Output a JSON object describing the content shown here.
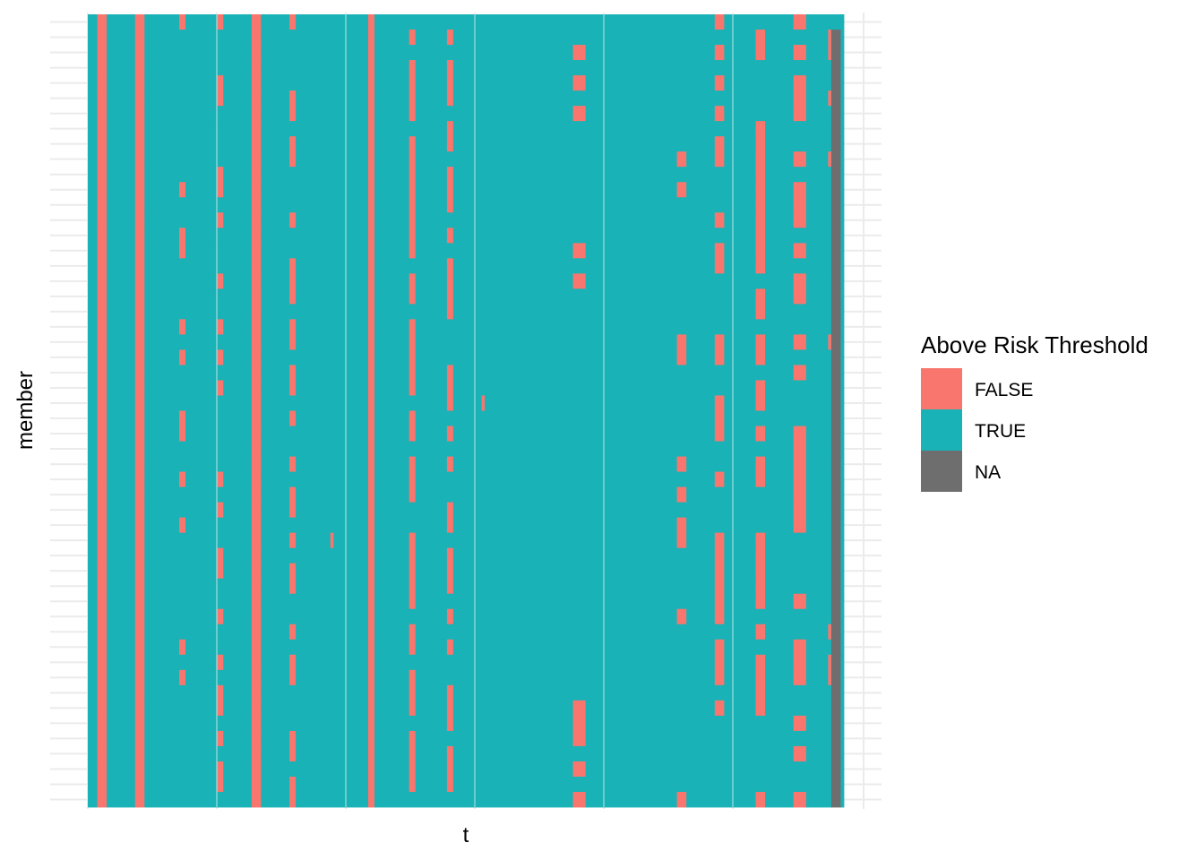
{
  "chart_data": {
    "type": "heatmap",
    "title": "",
    "xlabel": "t",
    "ylabel": "member",
    "x_tick_labels_shown": false,
    "y_tick_labels_shown": false,
    "grid": true,
    "legend_position": "right",
    "legend": {
      "title": "Above Risk Threshold",
      "entries": [
        {
          "label": "FALSE",
          "color": "#F8766D"
        },
        {
          "label": "TRUE",
          "color": "#19B2B7"
        },
        {
          "label": "NA",
          "color": "#6E6E6E"
        }
      ]
    },
    "n_members": 52,
    "n_timesteps": 240,
    "default_value": "TRUE",
    "na_columns": [
      237,
      238,
      239
    ],
    "false_columns_all_members": [
      4,
      5,
      6,
      16,
      17,
      18,
      53,
      54,
      55,
      90,
      91
    ],
    "false_blocks": [
      {
        "t": [
          30,
          31
        ],
        "members": [
          1,
          12,
          15,
          16,
          21,
          23,
          27,
          28,
          31,
          34,
          42,
          44
        ]
      },
      {
        "t": [
          42,
          43
        ],
        "members": [
          1,
          5,
          6,
          11,
          12,
          14,
          18,
          21,
          23,
          25,
          31,
          33,
          36,
          37,
          40,
          43,
          45,
          46,
          48,
          50,
          51
        ]
      },
      {
        "t": [
          65,
          66
        ],
        "members": [
          1,
          6,
          7,
          9,
          10,
          14,
          17,
          18,
          19,
          21,
          22,
          24,
          25,
          27,
          30,
          32,
          33,
          35,
          37,
          38,
          41,
          43,
          44,
          48,
          49,
          51,
          52
        ]
      },
      {
        "t": [
          103,
          104
        ],
        "members": [
          2,
          4,
          5,
          6,
          7,
          9,
          10,
          11,
          12,
          13,
          14,
          15,
          16,
          18,
          19,
          21,
          22,
          23,
          24,
          25,
          27,
          28,
          30,
          31,
          32,
          35,
          36,
          37,
          38,
          39,
          41,
          42,
          44,
          45,
          46,
          48,
          49,
          50,
          51
        ]
      },
      {
        "t": [
          115,
          116
        ],
        "members": [
          2,
          4,
          5,
          6,
          8,
          9,
          11,
          12,
          13,
          15,
          17,
          18,
          19,
          20,
          24,
          25,
          26,
          28,
          30,
          33,
          34,
          36,
          37,
          38,
          40,
          42,
          45,
          46,
          47,
          49,
          50,
          51
        ]
      },
      {
        "t": [
          126
        ],
        "members": [
          26
        ]
      },
      {
        "t": [
          78
        ],
        "members": [
          35
        ]
      },
      {
        "t": [
          155,
          156,
          157,
          158
        ],
        "members": [
          3,
          5,
          7,
          16,
          18,
          46,
          47,
          48,
          50,
          52
        ]
      },
      {
        "t": [
          188,
          189,
          190
        ],
        "members": [
          10,
          12,
          22,
          23,
          30,
          32,
          34,
          35,
          40,
          52
        ]
      },
      {
        "t": [
          200,
          201,
          202
        ],
        "members": [
          1,
          3,
          5,
          7,
          9,
          10,
          14,
          16,
          17,
          22,
          23,
          26,
          27,
          28,
          31,
          35,
          36,
          37,
          38,
          39,
          40,
          42,
          43,
          44,
          46
        ]
      },
      {
        "t": [
          213,
          214,
          215
        ],
        "members": [
          2,
          3,
          8,
          9,
          10,
          11,
          12,
          13,
          14,
          15,
          16,
          17,
          19,
          20,
          22,
          23,
          25,
          26,
          28,
          30,
          31,
          35,
          36,
          37,
          38,
          39,
          41,
          43,
          44,
          45,
          46,
          52
        ]
      },
      {
        "t": [
          225,
          226,
          227,
          228
        ],
        "members": [
          1,
          3,
          5,
          6,
          7,
          10,
          12,
          13,
          14,
          16,
          18,
          19,
          22,
          24,
          28,
          29,
          30,
          31,
          32,
          33,
          34,
          39,
          42,
          43,
          44,
          47,
          49,
          52
        ]
      },
      {
        "t": [
          236
        ],
        "members": [
          2,
          3,
          6,
          10,
          22,
          41,
          43,
          44
        ]
      }
    ]
  }
}
